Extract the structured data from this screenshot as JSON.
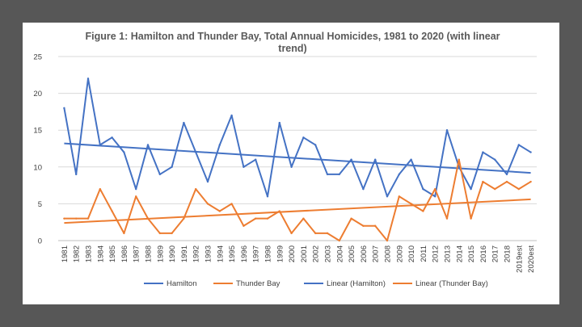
{
  "background_color": "#575757",
  "chart_data": {
    "type": "line",
    "title_lines": [
      "Figure 1: Hamilton and Thunder Bay, Total Annual Homicides, 1981 to 2020 (with linear",
      "trend)"
    ],
    "categories": [
      "1981",
      "1982",
      "1983",
      "1984",
      "1985",
      "1986",
      "1987",
      "1988",
      "1989",
      "1990",
      "1991",
      "1992",
      "1993",
      "1994",
      "1995",
      "1996",
      "1997",
      "1998",
      "1999",
      "2000",
      "2001",
      "2002",
      "2003",
      "2004",
      "2005",
      "2006",
      "2007",
      "2008",
      "2009",
      "2010",
      "2011",
      "2012",
      "2013",
      "2014",
      "2015",
      "2016",
      "2017",
      "2018",
      "2019est",
      "2020est"
    ],
    "ylim": [
      0,
      25
    ],
    "yticks": [
      0,
      5,
      10,
      15,
      20,
      25
    ],
    "grid": true,
    "legend_position": "bottom",
    "series": [
      {
        "name": "Hamilton",
        "color": "#4472C4",
        "values": [
          18,
          9,
          22,
          13,
          14,
          12,
          7,
          13,
          9,
          10,
          16,
          12,
          8,
          13,
          17,
          10,
          11,
          6,
          16,
          10,
          14,
          13,
          9,
          9,
          11,
          7,
          11,
          6,
          9,
          11,
          7,
          6,
          15,
          10,
          7,
          12,
          11,
          9,
          13,
          12
        ]
      },
      {
        "name": "Thunder Bay",
        "color": "#ED7D31",
        "values": [
          3,
          3,
          3,
          7,
          4,
          1,
          6,
          3,
          1,
          1,
          3,
          7,
          5,
          4,
          5,
          2,
          3,
          3,
          4,
          1,
          3,
          1,
          1,
          0,
          3,
          2,
          2,
          0,
          6,
          5,
          4,
          7,
          3,
          11,
          3,
          8,
          7,
          8,
          7,
          8
        ]
      }
    ],
    "trendlines": [
      {
        "name": "Linear (Hamilton)",
        "color": "#4472C4",
        "start": 13.2,
        "end": 9.2
      },
      {
        "name": "Linear (Thunder Bay)",
        "color": "#ED7D31",
        "start": 2.4,
        "end": 5.6
      }
    ]
  }
}
